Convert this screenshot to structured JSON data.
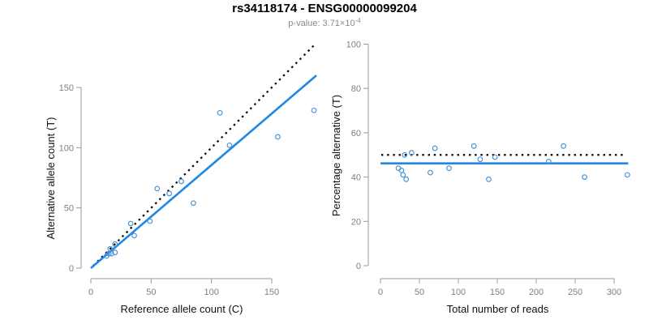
{
  "header": {
    "title": "rs34118174 - ENSG00000099204",
    "subtitle_prefix": "p-value: 3.71×10",
    "subtitle_exponent": "-4"
  },
  "colors": {
    "fit_line": "#1E87E8",
    "identity_line": "#000000",
    "point": "#4C94D6",
    "axis": "#999999",
    "tick_label": "#808080",
    "axis_label": "#111111",
    "subtitle": "#8a8a8a"
  },
  "chart_data": [
    {
      "type": "scatter",
      "xlabel": "Reference allele count (C)",
      "ylabel": "Alternative allele count (T)",
      "xticks": [
        0,
        50,
        100,
        150
      ],
      "yticks": [
        0,
        50,
        100,
        150
      ],
      "xlim": [
        0,
        190
      ],
      "ylim": [
        0,
        190
      ],
      "grid": false,
      "points": [
        [
          13,
          10
        ],
        [
          15,
          12
        ],
        [
          16,
          16
        ],
        [
          17,
          12
        ],
        [
          20,
          13
        ],
        [
          20,
          20
        ],
        [
          33,
          37
        ],
        [
          36,
          27
        ],
        [
          49,
          39
        ],
        [
          55,
          66
        ],
        [
          65,
          62
        ],
        [
          75,
          72
        ],
        [
          85,
          54
        ],
        [
          107,
          129
        ],
        [
          115,
          102
        ],
        [
          155,
          109
        ],
        [
          185,
          131
        ]
      ],
      "lines": [
        {
          "name": "identity",
          "style": "dotted",
          "color": "#000000",
          "x1": 2,
          "y1": 2,
          "x2": 186,
          "y2": 186
        },
        {
          "name": "fit",
          "style": "solid",
          "color": "#1E87E8",
          "x1": 0,
          "y1": 0,
          "x2": 187,
          "y2": 160
        }
      ]
    },
    {
      "type": "scatter",
      "xlabel": "Total number of reads",
      "ylabel": "Percentage alternative (T)",
      "xticks": [
        0,
        50,
        100,
        150,
        200,
        250,
        300
      ],
      "yticks": [
        0,
        20,
        40,
        60,
        80,
        100
      ],
      "xlim": [
        0,
        320
      ],
      "ylim": [
        0,
        100
      ],
      "grid": false,
      "points": [
        [
          23,
          44
        ],
        [
          27,
          43
        ],
        [
          29,
          41
        ],
        [
          31,
          50
        ],
        [
          33,
          39
        ],
        [
          40,
          51
        ],
        [
          64,
          42
        ],
        [
          70,
          53
        ],
        [
          88,
          44
        ],
        [
          120,
          54
        ],
        [
          128,
          48
        ],
        [
          139,
          39
        ],
        [
          147,
          49
        ],
        [
          216,
          47
        ],
        [
          235,
          54
        ],
        [
          262,
          40
        ],
        [
          317,
          41
        ]
      ],
      "lines": [
        {
          "name": "null",
          "style": "dotted",
          "color": "#000000",
          "x1": 1,
          "y1": 50,
          "x2": 311,
          "y2": 50
        },
        {
          "name": "fit",
          "style": "solid",
          "color": "#1E87E8",
          "x1": 0,
          "y1": 46.2,
          "x2": 318,
          "y2": 46.2
        }
      ]
    }
  ]
}
